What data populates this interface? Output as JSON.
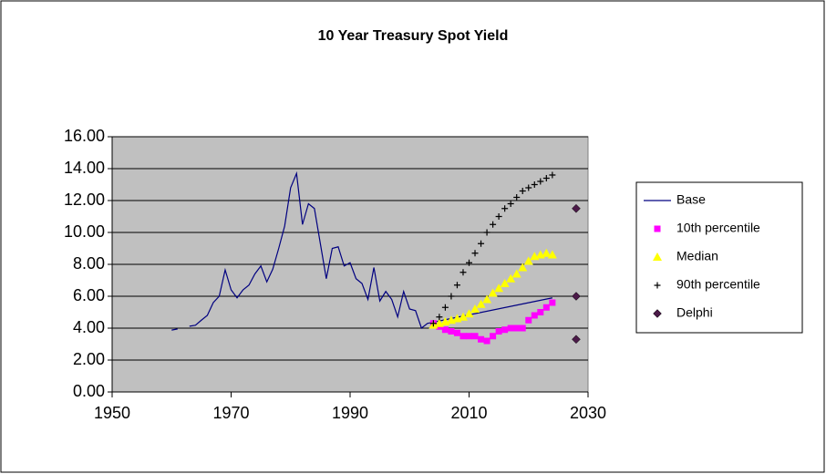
{
  "chart_data": {
    "type": "line",
    "title": "10 Year Treasury Spot Yield",
    "xlim": [
      1950,
      2030
    ],
    "xticks": [
      1950,
      1970,
      1990,
      2010,
      2030
    ],
    "ylim": [
      0,
      16
    ],
    "yticks": [
      {
        "value": 0,
        "label": "0.00"
      },
      {
        "value": 2,
        "label": "2.00"
      },
      {
        "value": 4,
        "label": "4.00"
      },
      {
        "value": 6,
        "label": "6.00"
      },
      {
        "value": 8,
        "label": "8.00"
      },
      {
        "value": 10,
        "label": "10.00"
      },
      {
        "value": 12,
        "label": "12.00"
      },
      {
        "value": 14,
        "label": "14.00"
      },
      {
        "value": 16,
        "label": "16.00"
      }
    ],
    "grid": true,
    "legend": "right",
    "series": [
      {
        "name": "Base",
        "color": "#000080",
        "marker": "line",
        "x": [
          1960,
          1961,
          1962,
          1963,
          1964,
          1965,
          1966,
          1967,
          1968,
          1969,
          1970,
          1971,
          1972,
          1973,
          1974,
          1975,
          1976,
          1977,
          1978,
          1979,
          1980,
          1981,
          1982,
          1983,
          1984,
          1985,
          1986,
          1987,
          1988,
          1989,
          1990,
          1991,
          1992,
          1993,
          1994,
          1995,
          1996,
          1997,
          1998,
          1999,
          2000,
          2001,
          2002,
          2003,
          2024
        ],
        "values": [
          3.88,
          3.95,
          null,
          4.12,
          4.18,
          4.5,
          4.8,
          5.6,
          6.0,
          7.65,
          6.4,
          5.9,
          6.4,
          6.7,
          7.4,
          7.9,
          6.9,
          7.7,
          9.0,
          10.4,
          12.8,
          13.7,
          10.5,
          11.8,
          11.5,
          9.3,
          7.1,
          9.0,
          9.1,
          7.9,
          8.1,
          7.1,
          6.8,
          5.8,
          7.8,
          5.7,
          6.3,
          5.8,
          4.7,
          6.3,
          5.2,
          5.1,
          4.0,
          4.3,
          5.9
        ]
      },
      {
        "name": "10th percentile",
        "color": "#ff00ff",
        "marker": "square",
        "x": [
          2004,
          2005,
          2006,
          2007,
          2008,
          2009,
          2010,
          2011,
          2012,
          2013,
          2014,
          2015,
          2016,
          2017,
          2018,
          2019,
          2020,
          2021,
          2022,
          2023,
          2024
        ],
        "values": [
          4.3,
          4.1,
          3.9,
          3.8,
          3.7,
          3.5,
          3.5,
          3.5,
          3.3,
          3.2,
          3.5,
          3.8,
          3.9,
          4.0,
          4.0,
          4.0,
          4.5,
          4.8,
          5.0,
          5.3,
          5.6
        ]
      },
      {
        "name": "Median",
        "color": "#ffff00",
        "marker": "triangle",
        "x": [
          2004,
          2005,
          2006,
          2007,
          2008,
          2009,
          2010,
          2011,
          2012,
          2013,
          2014,
          2015,
          2016,
          2017,
          2018,
          2019,
          2020,
          2021,
          2022,
          2023,
          2024
        ],
        "values": [
          4.2,
          4.3,
          4.4,
          4.5,
          4.6,
          4.7,
          4.9,
          5.2,
          5.5,
          5.8,
          6.2,
          6.5,
          6.8,
          7.1,
          7.4,
          7.8,
          8.2,
          8.5,
          8.6,
          8.7,
          8.6
        ]
      },
      {
        "name": "90th percentile",
        "color": "#000000",
        "marker": "plus",
        "x": [
          2004,
          2005,
          2006,
          2007,
          2008,
          2009,
          2010,
          2011,
          2012,
          2013,
          2014,
          2015,
          2016,
          2017,
          2018,
          2019,
          2020,
          2021,
          2022,
          2023,
          2024
        ],
        "values": [
          4.3,
          4.7,
          5.3,
          6.0,
          6.7,
          7.5,
          8.1,
          8.7,
          9.3,
          10.0,
          10.5,
          11.0,
          11.5,
          11.8,
          12.2,
          12.6,
          12.8,
          13.0,
          13.2,
          13.4,
          13.6
        ]
      },
      {
        "name": "Delphi",
        "color": "#4b1a48",
        "marker": "diamond",
        "x": [
          2028,
          2028,
          2028
        ],
        "values": [
          11.5,
          6.0,
          3.3
        ]
      }
    ]
  }
}
